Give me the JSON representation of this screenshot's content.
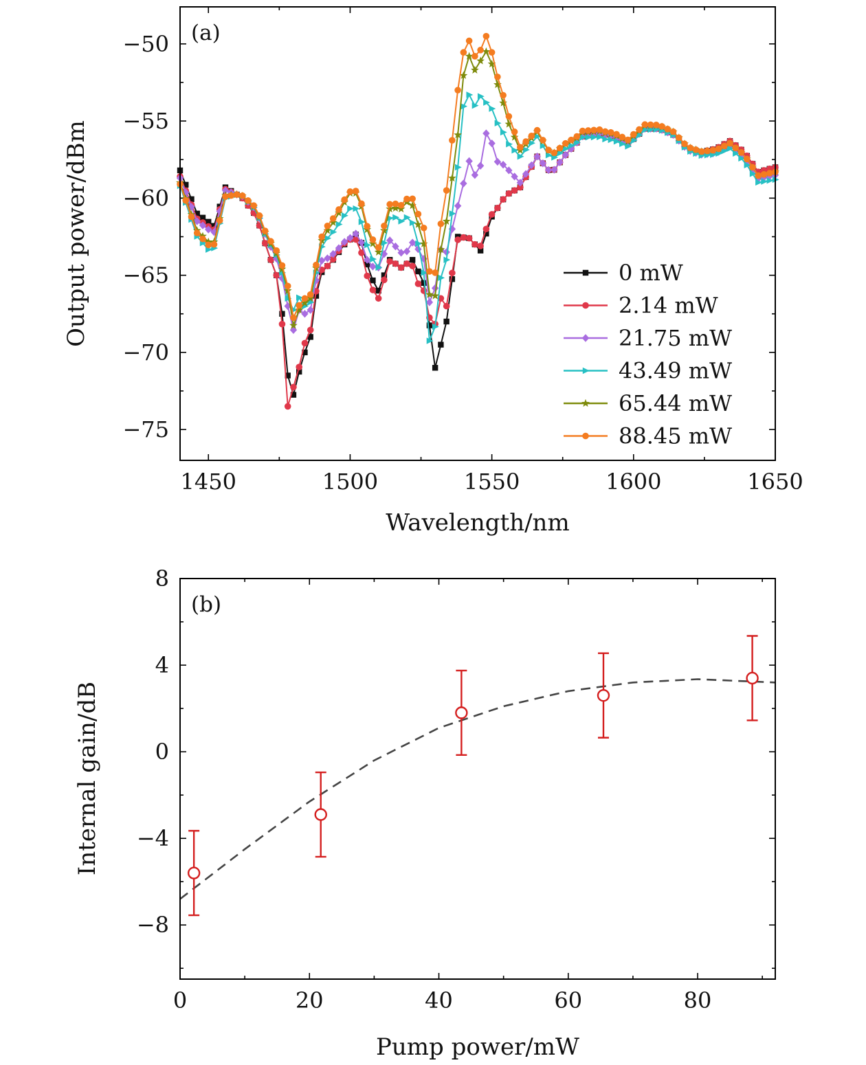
{
  "chart_data": [
    {
      "id": "a",
      "type": "line",
      "panel_label": "(a)",
      "xlabel": "Wavelength/nm",
      "ylabel": "Output power/dBm",
      "xlim": [
        1440,
        1650
      ],
      "ylim": [
        -77,
        -47.6
      ],
      "xticks": [
        1450,
        1500,
        1550,
        1600,
        1650
      ],
      "yticks": [
        -50,
        -55,
        -60,
        -65,
        -70,
        -75
      ],
      "ytick_labels": [
        "−50",
        "−55",
        "−60",
        "−65",
        "−70",
        "−75"
      ],
      "legend_position": "lower-right",
      "baseline_x": [
        1440,
        1446,
        1452,
        1456,
        1462,
        1467,
        1471,
        1475,
        1479,
        1483,
        1486,
        1489,
        1494,
        1498,
        1503,
        1507,
        1510,
        1514,
        1518,
        1522,
        1526,
        1530,
        1534,
        1538,
        1542,
        1546,
        1550,
        1555,
        1560,
        1566,
        1571,
        1576,
        1582,
        1588,
        1593,
        1598,
        1604,
        1609,
        1614,
        1619,
        1624,
        1629,
        1634,
        1639,
        1644,
        1650
      ],
      "baseline_y": [
        -58.2,
        -61.0,
        -61.8,
        -59.3,
        -60.0,
        -61.2,
        -63.5,
        -65.5,
        -73.5,
        -70.5,
        -69.0,
        -65.0,
        -64.0,
        -63.0,
        -62.2,
        -65.0,
        -66.0,
        -64.0,
        -64.5,
        -64.0,
        -65.5,
        -71.0,
        -68.0,
        -62.5,
        -62.6,
        -63.4,
        -61.2,
        -59.8,
        -59.3,
        -57.3,
        -58.4,
        -57.2,
        -56.0,
        -55.8,
        -56.0,
        -56.5,
        -55.5,
        -55.5,
        -55.9,
        -56.8,
        -57.0,
        -56.8,
        -56.3,
        -57.0,
        -58.3,
        -58.0
      ],
      "deltas_x": [
        1440,
        1450,
        1460,
        1470,
        1475,
        1478,
        1480,
        1482,
        1484,
        1488,
        1492,
        1497,
        1500,
        1505,
        1510,
        1515,
        1520,
        1525,
        1528,
        1531,
        1534,
        1538,
        1540,
        1542,
        1544,
        1546,
        1548,
        1552,
        1556,
        1560,
        1566,
        1572,
        1580,
        1590,
        1600,
        1615,
        1630,
        1650
      ],
      "series": [
        {
          "name": "0 mW",
          "legend": "0 mW",
          "color": "#111111",
          "marker": "square",
          "deltas": [
            0,
            0,
            0,
            0,
            0,
            0,
            0,
            0,
            0,
            0,
            0,
            0,
            0,
            0,
            0,
            0,
            0,
            0,
            0,
            0,
            0,
            0,
            0,
            0,
            0,
            0,
            0,
            0,
            0,
            0,
            0,
            0,
            0,
            0,
            0,
            0,
            0,
            0
          ]
        },
        {
          "name": "2.14 mW",
          "legend": "2.14 mW",
          "color": "#e0384a",
          "marker": "circle",
          "deltas": [
            -0.4,
            -0.3,
            0,
            0,
            0,
            -2.0,
            0.5,
            0.3,
            0.6,
            0.3,
            0,
            0.1,
            0,
            -0.8,
            -0.5,
            0,
            0,
            -1.0,
            0.5,
            4.0,
            1.0,
            -0.2,
            0,
            0,
            0,
            0.3,
            0.3,
            0,
            0,
            0,
            0,
            0,
            0,
            0,
            0,
            0,
            0,
            0
          ]
        },
        {
          "name": "21.75 mW",
          "legend": "21.75 mW",
          "color": "#a96de0",
          "marker": "diamond",
          "deltas": [
            -0.5,
            -0.5,
            0,
            0.6,
            1.2,
            4.5,
            4.2,
            4.0,
            2.5,
            1.0,
            0.5,
            0.2,
            0.1,
            0,
            1.5,
            1.2,
            0.8,
            1.6,
            1.5,
            7.0,
            4.5,
            2.0,
            3.5,
            5.0,
            4.5,
            5.5,
            6.5,
            3.0,
            1.5,
            0.3,
            0,
            0,
            0,
            0,
            0,
            0,
            -0.3,
            -0.5
          ]
        },
        {
          "name": "43.49 mW",
          "legend": "43.49 mW",
          "color": "#27c0c4",
          "marker": "triangle-right",
          "deltas": [
            -1.0,
            -1.8,
            0,
            0.6,
            1.5,
            5.0,
            5.5,
            4.8,
            3.0,
            1.5,
            1.8,
            1.8,
            2.0,
            1.2,
            1.5,
            3.0,
            3.0,
            1.5,
            -1.0,
            4.5,
            4.0,
            4.5,
            8.5,
            9.3,
            9.0,
            10.0,
            8.5,
            5.5,
            3.2,
            2.0,
            1.3,
            0.8,
            0,
            -0.3,
            -0.1,
            0,
            -0.4,
            -0.8
          ]
        },
        {
          "name": "65.44 mW",
          "legend": "65.44 mW",
          "color": "#7e8b0c",
          "marker": "star",
          "deltas": [
            -0.8,
            -1.3,
            0,
            0.7,
            1.6,
            5.5,
            4.5,
            4.0,
            3.2,
            1.8,
            2.3,
            2.6,
            3.0,
            2.2,
            2.5,
            3.5,
            4.0,
            2.8,
            2.0,
            6.0,
            6.5,
            6.6,
            10.5,
            11.8,
            11.3,
            12.3,
            11.8,
            8.0,
            4.5,
            2.4,
            1.6,
            1.1,
            0.3,
            0.1,
            0.2,
            0.2,
            -0.1,
            -0.3
          ]
        },
        {
          "name": "88.45 mW",
          "legend": "88.45 mW",
          "color": "#f47c20",
          "marker": "hexagon",
          "deltas": [
            -0.9,
            -1.5,
            0,
            0.8,
            1.8,
            5.8,
            5.0,
            4.3,
            3.5,
            2.0,
            2.6,
            2.8,
            3.1,
            2.4,
            2.8,
            3.8,
            4.2,
            3.6,
            3.5,
            7.5,
            8.5,
            9.5,
            12.0,
            12.8,
            12.2,
            13.0,
            12.8,
            8.5,
            5.0,
            2.6,
            1.7,
            1.1,
            0.4,
            0.2,
            0.3,
            0.2,
            -0.1,
            -0.3
          ]
        }
      ]
    },
    {
      "id": "b",
      "type": "scatter",
      "panel_label": "(b)",
      "xlabel": "Pump power/mW",
      "ylabel": "Internal gain/dB",
      "xlim": [
        0,
        92
      ],
      "ylim": [
        -10.5,
        8
      ],
      "xticks": [
        0,
        20,
        40,
        60,
        80
      ],
      "yticks": [
        8,
        4,
        0,
        -4,
        -8
      ],
      "ytick_labels": [
        "8",
        "4",
        "0",
        "−4",
        "−8"
      ],
      "series": [
        {
          "name": "Internal gain",
          "color": "#d41e1e",
          "marker": "open-circle",
          "x": [
            2.14,
            21.75,
            43.49,
            65.44,
            88.45
          ],
          "y": [
            -5.6,
            -2.9,
            1.8,
            2.6,
            3.4
          ],
          "error": [
            1.95,
            1.95,
            1.95,
            1.95,
            1.95
          ]
        }
      ],
      "fit": {
        "name": "fit",
        "style": "dashed",
        "color": "#444444",
        "x": [
          0,
          10,
          20,
          30,
          40,
          50,
          60,
          70,
          80,
          92
        ],
        "y": [
          -6.8,
          -4.5,
          -2.3,
          -0.4,
          1.1,
          2.1,
          2.8,
          3.2,
          3.35,
          3.2
        ]
      }
    }
  ]
}
